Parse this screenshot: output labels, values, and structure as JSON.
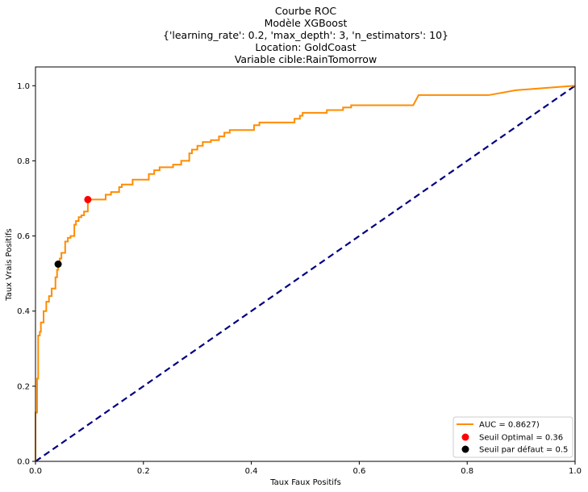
{
  "chart_data": {
    "type": "line",
    "title_lines": [
      "Courbe ROC",
      "Modèle XGBoost",
      "{'learning_rate': 0.2, 'max_depth': 3, 'n_estimators': 10}",
      "Location: GoldCoast",
      "Variable cible:RainTomorrow"
    ],
    "xlabel": "Taux Faux Positifs",
    "ylabel": "Taux Vrais Positifs",
    "xlim": [
      0.0,
      1.0
    ],
    "ylim": [
      0.0,
      1.05
    ],
    "xticks": [
      "0.0",
      "0.2",
      "0.4",
      "0.6",
      "0.8",
      "1.0"
    ],
    "yticks": [
      "0.0",
      "0.2",
      "0.4",
      "0.6",
      "0.8",
      "1.0"
    ],
    "grid": false,
    "legend_position": "lower-right",
    "roc_series": {
      "name": "AUC = 0.8627)",
      "color": "#ff8c00",
      "points": [
        [
          0.0,
          0.0
        ],
        [
          0.0,
          0.13
        ],
        [
          0.003,
          0.13
        ],
        [
          0.003,
          0.22
        ],
        [
          0.005,
          0.22
        ],
        [
          0.005,
          0.335
        ],
        [
          0.008,
          0.335
        ],
        [
          0.008,
          0.345
        ],
        [
          0.01,
          0.345
        ],
        [
          0.01,
          0.37
        ],
        [
          0.015,
          0.37
        ],
        [
          0.015,
          0.4
        ],
        [
          0.02,
          0.4
        ],
        [
          0.02,
          0.425
        ],
        [
          0.025,
          0.425
        ],
        [
          0.025,
          0.44
        ],
        [
          0.03,
          0.44
        ],
        [
          0.03,
          0.46
        ],
        [
          0.037,
          0.46
        ],
        [
          0.037,
          0.49
        ],
        [
          0.04,
          0.49
        ],
        [
          0.04,
          0.51
        ],
        [
          0.042,
          0.51
        ],
        [
          0.042,
          0.525
        ],
        [
          0.045,
          0.525
        ],
        [
          0.045,
          0.54
        ],
        [
          0.048,
          0.54
        ],
        [
          0.048,
          0.555
        ],
        [
          0.055,
          0.555
        ],
        [
          0.055,
          0.585
        ],
        [
          0.06,
          0.585
        ],
        [
          0.06,
          0.595
        ],
        [
          0.065,
          0.595
        ],
        [
          0.065,
          0.6
        ],
        [
          0.072,
          0.6
        ],
        [
          0.072,
          0.63
        ],
        [
          0.075,
          0.63
        ],
        [
          0.075,
          0.64
        ],
        [
          0.08,
          0.64
        ],
        [
          0.08,
          0.65
        ],
        [
          0.085,
          0.65
        ],
        [
          0.085,
          0.655
        ],
        [
          0.09,
          0.655
        ],
        [
          0.09,
          0.665
        ],
        [
          0.097,
          0.665
        ],
        [
          0.097,
          0.697
        ],
        [
          0.13,
          0.697
        ],
        [
          0.13,
          0.71
        ],
        [
          0.14,
          0.71
        ],
        [
          0.14,
          0.717
        ],
        [
          0.155,
          0.717
        ],
        [
          0.155,
          0.73
        ],
        [
          0.16,
          0.73
        ],
        [
          0.16,
          0.737
        ],
        [
          0.18,
          0.737
        ],
        [
          0.18,
          0.75
        ],
        [
          0.21,
          0.75
        ],
        [
          0.21,
          0.765
        ],
        [
          0.22,
          0.765
        ],
        [
          0.22,
          0.775
        ],
        [
          0.23,
          0.775
        ],
        [
          0.23,
          0.783
        ],
        [
          0.255,
          0.783
        ],
        [
          0.255,
          0.79
        ],
        [
          0.27,
          0.79
        ],
        [
          0.27,
          0.8
        ],
        [
          0.285,
          0.8
        ],
        [
          0.285,
          0.82
        ],
        [
          0.29,
          0.82
        ],
        [
          0.29,
          0.83
        ],
        [
          0.3,
          0.83
        ],
        [
          0.3,
          0.84
        ],
        [
          0.31,
          0.84
        ],
        [
          0.31,
          0.85
        ],
        [
          0.325,
          0.85
        ],
        [
          0.325,
          0.855
        ],
        [
          0.34,
          0.855
        ],
        [
          0.34,
          0.865
        ],
        [
          0.35,
          0.865
        ],
        [
          0.35,
          0.875
        ],
        [
          0.36,
          0.875
        ],
        [
          0.36,
          0.882
        ],
        [
          0.405,
          0.882
        ],
        [
          0.405,
          0.895
        ],
        [
          0.415,
          0.895
        ],
        [
          0.415,
          0.902
        ],
        [
          0.48,
          0.902
        ],
        [
          0.48,
          0.912
        ],
        [
          0.49,
          0.912
        ],
        [
          0.49,
          0.92
        ],
        [
          0.495,
          0.92
        ],
        [
          0.495,
          0.928
        ],
        [
          0.54,
          0.928
        ],
        [
          0.54,
          0.935
        ],
        [
          0.57,
          0.935
        ],
        [
          0.57,
          0.942
        ],
        [
          0.585,
          0.942
        ],
        [
          0.585,
          0.948
        ],
        [
          0.7,
          0.948
        ],
        [
          0.71,
          0.975
        ],
        [
          0.84,
          0.975
        ],
        [
          0.89,
          0.988
        ],
        [
          1.0,
          1.0
        ]
      ]
    },
    "reference_series": {
      "color": "#000080",
      "points": [
        [
          0.0,
          0.0
        ],
        [
          1.0,
          1.0
        ]
      ]
    },
    "markers": [
      {
        "name": "Seuil Optimal = 0.36",
        "x": 0.097,
        "y": 0.697,
        "color": "#ff0000"
      },
      {
        "name": "Seuil par défaut = 0.5",
        "x": 0.042,
        "y": 0.525,
        "color": "#000000"
      }
    ]
  }
}
